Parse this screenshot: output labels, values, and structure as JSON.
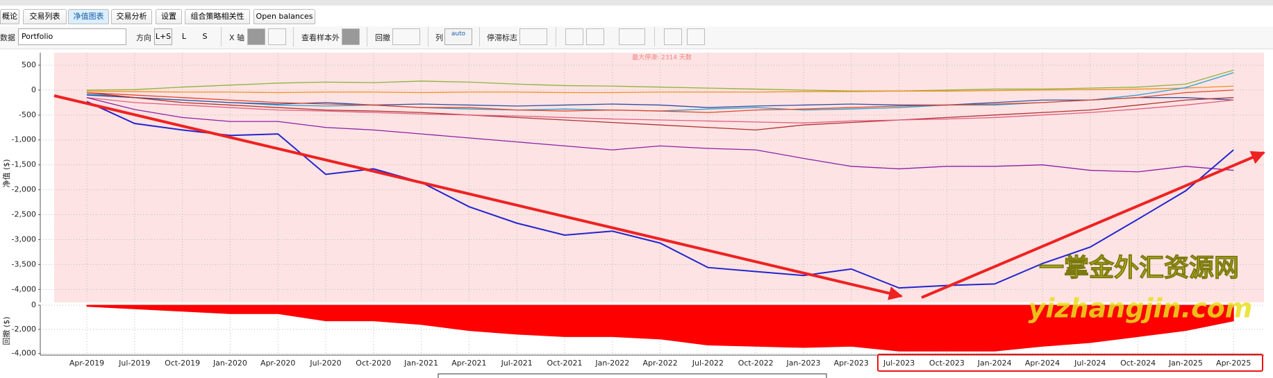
{
  "tabs": [
    "概论",
    "交易列表",
    "净值图表",
    "交易分析",
    "设置",
    "组合策略相关性",
    "Open balances"
  ],
  "toolbar": {
    "data_label": "数据",
    "data_select": "Portfolio",
    "direction_label": "方向",
    "direction_options": [
      "L+S",
      "L",
      "S"
    ],
    "x_axis_label": "X 轴",
    "out_of_sample_label": "查看样本外",
    "drawdown_label": "回撤",
    "column_label": "列",
    "column_auto": "auto",
    "stagnation_label": "停滞标志"
  },
  "chart_data": [
    {
      "type": "line",
      "y_label": "净值 ($)",
      "annotation": "最大停滞: 2314 天数",
      "x": [
        "Apr-2019",
        "Jul-2019",
        "Oct-2019",
        "Jan-2020",
        "Apr-2020",
        "Jul-2020",
        "Oct-2020",
        "Jan-2021",
        "Apr-2021",
        "Jul-2021",
        "Oct-2021",
        "Jan-2022",
        "Apr-2022",
        "Jul-2022",
        "Oct-2022",
        "Jan-2023",
        "Apr-2023",
        "Jul-2023",
        "Oct-2023",
        "Jan-2024",
        "Apr-2024",
        "Jul-2024",
        "Oct-2024",
        "Jan-2025",
        "Apr-2025"
      ],
      "ylim": [
        -4260,
        750
      ],
      "yticks": [
        500,
        0,
        -500,
        {
          "value": -1000,
          "label": "-1,000"
        },
        {
          "value": -1500,
          "label": "-1,500"
        },
        {
          "value": -2000,
          "label": "-2,000"
        },
        {
          "value": -2500,
          "label": "-2,500"
        },
        {
          "value": -3000,
          "label": "-3,000"
        },
        {
          "value": -3500,
          "label": "-3,500"
        },
        {
          "value": -4000,
          "label": "-4,000"
        }
      ],
      "grid": true,
      "series": [
        {
          "color": "#8db33a",
          "values": [
            0,
            10,
            60,
            100,
            140,
            160,
            150,
            180,
            160,
            120,
            90,
            80,
            60,
            40,
            20,
            0,
            -20,
            -20,
            0,
            20,
            20,
            40,
            60,
            120,
            400
          ]
        },
        {
          "color": "#f0901e",
          "values": [
            -20,
            -30,
            -40,
            -40,
            -50,
            -40,
            -40,
            -50,
            -40,
            -40,
            -50,
            -50,
            -40,
            -40,
            -40,
            -30,
            -30,
            -20,
            -20,
            -10,
            0,
            10,
            20,
            40,
            80
          ]
        },
        {
          "color": "#2a9fd0",
          "values": [
            -80,
            -150,
            -200,
            -250,
            -300,
            -320,
            -300,
            -350,
            -380,
            -400,
            -380,
            -400,
            -420,
            -380,
            -350,
            -400,
            -380,
            -350,
            -300,
            -300,
            -250,
            -200,
            -100,
            50,
            350
          ]
        },
        {
          "color": "#2f4fa0",
          "values": [
            -100,
            -150,
            -200,
            -250,
            -280,
            -250,
            -300,
            -280,
            -300,
            -320,
            -300,
            -280,
            -300,
            -350,
            -320,
            -300,
            -280,
            -300,
            -300,
            -250,
            -200,
            -200,
            -150,
            -150,
            -200
          ]
        },
        {
          "color": "#b03030",
          "values": [
            -50,
            -150,
            -250,
            -300,
            -350,
            -400,
            -420,
            -450,
            -500,
            -550,
            -600,
            -650,
            -700,
            -750,
            -800,
            -700,
            -650,
            -600,
            -550,
            -500,
            -450,
            -400,
            -300,
            -200,
            -150
          ]
        },
        {
          "color": "#e0462a",
          "values": [
            -50,
            -100,
            -150,
            -200,
            -250,
            -280,
            -300,
            -350,
            -350,
            -400,
            -420,
            -400,
            -420,
            -450,
            -400,
            -380,
            -350,
            -320,
            -300,
            -280,
            -250,
            -200,
            -150,
            -50,
            0
          ]
        },
        {
          "color": "#e06080",
          "values": [
            -150,
            -250,
            -300,
            -350,
            -400,
            -420,
            -450,
            -480,
            -500,
            -520,
            -550,
            -580,
            -600,
            -620,
            -640,
            -660,
            -620,
            -600,
            -580,
            -550,
            -500,
            -450,
            -380,
            -300,
            -200
          ]
        },
        {
          "color": "#8b1fa8",
          "values": [
            -150,
            -390,
            -550,
            -630,
            -630,
            -750,
            -800,
            -880,
            -960,
            -1040,
            -1120,
            -1200,
            -1120,
            -1170,
            -1200,
            -1370,
            -1530,
            -1580,
            -1530,
            -1530,
            -1500,
            -1610,
            -1640,
            -1530,
            -1610
          ]
        },
        {
          "color": "#2323d0",
          "values": [
            -230,
            -670,
            -800,
            -910,
            -880,
            -1690,
            -1580,
            -1850,
            -2340,
            -2670,
            -2910,
            -2830,
            -3070,
            -3560,
            -3640,
            -3720,
            -3590,
            -3970,
            -3920,
            -3890,
            -3480,
            -3150,
            -2590,
            -2020,
            -1200
          ]
        }
      ]
    },
    {
      "type": "area",
      "y_label": "回撤 ($)",
      "color": "#ff0000",
      "values": [
        -100,
        -300,
        -500,
        -700,
        -700,
        -1300,
        -1300,
        -1600,
        -2100,
        -2400,
        -2600,
        -2600,
        -2800,
        -3300,
        -3400,
        -3500,
        -3400,
        -3800,
        -3800,
        -3800,
        -3400,
        -3100,
        -2600,
        -2100,
        -1300
      ],
      "ylim": [
        -4130,
        0
      ],
      "yticks": [
        0,
        {
          "value": -2000,
          "label": "-2,000"
        },
        {
          "value": -4000,
          "label": "-4,000"
        }
      ],
      "grid": true
    }
  ],
  "watermark": {
    "cn": "一掌金外汇资源网",
    "url": "yizhangjin.com"
  }
}
